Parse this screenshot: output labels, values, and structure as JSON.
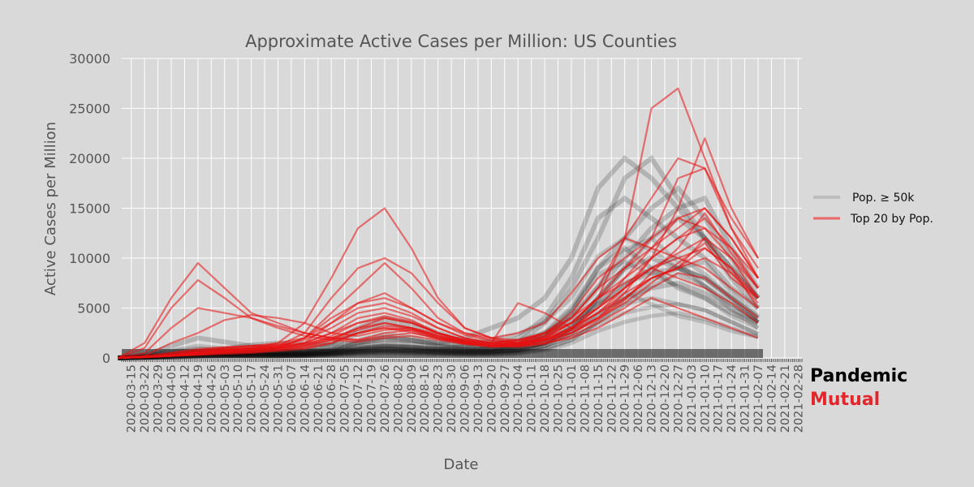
{
  "chart_data": {
    "type": "line",
    "title": "Approximate Active Cases per Million: US Counties",
    "xlabel": "Date",
    "ylabel": "Active Cases per Million",
    "ylim": [
      0,
      30000
    ],
    "yticks": [
      0,
      5000,
      10000,
      15000,
      20000,
      25000,
      30000
    ],
    "xlim": [
      "2020-03-10",
      "2021-03-02"
    ],
    "xtick_labels": [
      "2020-03-15",
      "2020-03-22",
      "2020-03-29",
      "2020-04-05",
      "2020-04-12",
      "2020-04-19",
      "2020-04-26",
      "2020-05-03",
      "2020-05-10",
      "2020-05-17",
      "2020-05-24",
      "2020-05-31",
      "2020-06-07",
      "2020-06-14",
      "2020-06-21",
      "2020-06-28",
      "2020-07-05",
      "2020-07-12",
      "2020-07-19",
      "2020-07-26",
      "2020-08-02",
      "2020-08-09",
      "2020-08-16",
      "2020-08-23",
      "2020-08-30",
      "2020-09-06",
      "2020-09-13",
      "2020-09-20",
      "2020-09-27",
      "2020-10-04",
      "2020-10-11",
      "2020-10-18",
      "2020-10-25",
      "2020-11-01",
      "2020-11-08",
      "2020-11-15",
      "2020-11-22",
      "2020-11-29",
      "2020-12-06",
      "2020-12-13",
      "2020-12-20",
      "2020-12-27",
      "2021-01-03",
      "2021-01-10",
      "2021-01-17",
      "2021-01-24",
      "2021-01-31",
      "2021-02-07",
      "2021-02-14",
      "2021-02-21",
      "2021-02-28"
    ],
    "grid": true,
    "legend": {
      "placement": "right",
      "entries": [
        {
          "label": "Pop.  ≥  50k",
          "color": "#bdbdbd"
        },
        {
          "label": "Top 20 by Pop.",
          "color": "#e8686b"
        }
      ]
    },
    "x": [
      "2020-03-08",
      "2020-03-22",
      "2020-04-05",
      "2020-04-19",
      "2020-05-03",
      "2020-05-17",
      "2020-05-31",
      "2020-06-14",
      "2020-06-28",
      "2020-07-12",
      "2020-07-26",
      "2020-08-09",
      "2020-08-23",
      "2020-09-06",
      "2020-09-20",
      "2020-10-04",
      "2020-10-18",
      "2020-11-01",
      "2020-11-15",
      "2020-11-29",
      "2020-12-13",
      "2020-12-27",
      "2021-01-10",
      "2021-01-24",
      "2021-02-07"
    ],
    "series_top20": [
      [
        0,
        1500,
        6000,
        9500,
        7000,
        4500,
        3500,
        2500,
        2000,
        1800,
        2200,
        2500,
        2000,
        1500,
        1200,
        1300,
        1800,
        3000,
        5000,
        7000,
        9000,
        10000,
        11000,
        9000,
        6000
      ],
      [
        0,
        1000,
        5000,
        7800,
        6000,
        4000,
        3000,
        2200,
        1800,
        1600,
        2000,
        2200,
        1800,
        1400,
        1200,
        1300,
        2000,
        3500,
        6000,
        8000,
        10000,
        12000,
        14000,
        11000,
        7000
      ],
      [
        0,
        500,
        3000,
        5000,
        4500,
        4000,
        3200,
        2500,
        2000,
        1800,
        2500,
        2800,
        2200,
        1600,
        1300,
        1500,
        2200,
        4000,
        7000,
        9000,
        11000,
        13000,
        15000,
        12000,
        8000
      ],
      [
        0,
        200,
        1500,
        2500,
        3800,
        4300,
        4000,
        3500,
        2500,
        2200,
        2800,
        3000,
        2400,
        1700,
        1400,
        1600,
        2500,
        4500,
        8000,
        10000,
        12000,
        14000,
        13000,
        10000,
        6000
      ],
      [
        0,
        100,
        500,
        800,
        1000,
        1200,
        1500,
        2000,
        3500,
        5000,
        5500,
        4500,
        3000,
        2000,
        1500,
        1800,
        2200,
        3500,
        6000,
        12000,
        25000,
        27000,
        20000,
        13000,
        8000
      ],
      [
        0,
        100,
        300,
        500,
        700,
        900,
        1500,
        3500,
        8000,
        13000,
        15000,
        11000,
        6000,
        3000,
        2000,
        1800,
        2500,
        4000,
        7000,
        12000,
        16000,
        20000,
        19000,
        14000,
        10000
      ],
      [
        0,
        100,
        300,
        600,
        800,
        1000,
        1200,
        2500,
        6000,
        9000,
        10000,
        8500,
        5500,
        3000,
        2000,
        1500,
        2000,
        3500,
        6000,
        9000,
        12000,
        18000,
        19000,
        13000,
        9000
      ],
      [
        0,
        100,
        200,
        400,
        600,
        800,
        1000,
        2000,
        4500,
        7000,
        9500,
        7000,
        4000,
        2500,
        1800,
        1500,
        1800,
        3000,
        5000,
        8000,
        11000,
        14000,
        15000,
        12000,
        8000
      ],
      [
        0,
        100,
        200,
        400,
        600,
        700,
        900,
        1500,
        3500,
        5500,
        6500,
        5000,
        3500,
        2500,
        2000,
        2500,
        3500,
        6500,
        10000,
        12000,
        11000,
        10000,
        9000,
        7000,
        5000
      ],
      [
        0,
        200,
        500,
        900,
        1100,
        1200,
        1300,
        1800,
        3000,
        4500,
        5000,
        4200,
        3000,
        2000,
        1500,
        1200,
        1500,
        2500,
        4000,
        6000,
        8000,
        9000,
        10000,
        8500,
        6000
      ],
      [
        0,
        100,
        300,
        500,
        700,
        800,
        1000,
        1500,
        2500,
        4000,
        4500,
        3800,
        2500,
        1800,
        1500,
        5500,
        4500,
        3000,
        4500,
        6000,
        8000,
        9000,
        12000,
        10000,
        7000
      ],
      [
        0,
        100,
        200,
        400,
        500,
        600,
        800,
        1200,
        2000,
        3000,
        3500,
        3000,
        2000,
        1500,
        1200,
        1500,
        2500,
        4000,
        6000,
        7500,
        9000,
        8000,
        7000,
        5500,
        3500
      ],
      [
        0,
        100,
        300,
        600,
        900,
        1000,
        1100,
        1300,
        2200,
        3500,
        4200,
        3600,
        2500,
        1800,
        1500,
        1800,
        2500,
        3500,
        5000,
        7000,
        9000,
        10500,
        12000,
        8500,
        5500
      ],
      [
        0,
        100,
        200,
        500,
        700,
        900,
        1000,
        1100,
        1800,
        3000,
        4000,
        3500,
        2500,
        1600,
        1200,
        1300,
        1800,
        2500,
        4000,
        6500,
        10000,
        15000,
        22000,
        15000,
        10000
      ],
      [
        0,
        100,
        200,
        300,
        400,
        500,
        700,
        900,
        1500,
        2500,
        3000,
        2800,
        2000,
        1500,
        1200,
        1200,
        1500,
        2000,
        3000,
        4500,
        6000,
        5000,
        4000,
        3000,
        2000
      ],
      [
        0,
        100,
        300,
        700,
        1000,
        1200,
        1300,
        1500,
        2500,
        3500,
        4000,
        3500,
        2500,
        1800,
        1400,
        1500,
        2000,
        3000,
        4500,
        6500,
        8000,
        9000,
        11000,
        9000,
        5000
      ],
      [
        0,
        100,
        200,
        400,
        600,
        800,
        1100,
        2000,
        4000,
        5500,
        6000,
        5000,
        3500,
        2300,
        1700,
        1500,
        1800,
        2800,
        4500,
        7000,
        10000,
        12000,
        13000,
        11000,
        8000
      ],
      [
        0,
        50,
        200,
        500,
        800,
        1000,
        1200,
        1400,
        2000,
        2800,
        3500,
        3000,
        2200,
        1600,
        1200,
        1100,
        1400,
        2200,
        3500,
        5000,
        7000,
        8500,
        8000,
        6000,
        4000
      ],
      [
        0,
        100,
        300,
        600,
        800,
        900,
        1000,
        1200,
        1800,
        2500,
        3200,
        3000,
        2200,
        1500,
        1200,
        1300,
        1800,
        2800,
        4000,
        5500,
        7500,
        9500,
        11500,
        8000,
        6000
      ],
      [
        0,
        100,
        200,
        300,
        500,
        600,
        800,
        1000,
        1500,
        2500,
        3000,
        2600,
        1900,
        1400,
        1100,
        1200,
        1700,
        2500,
        3800,
        5800,
        8500,
        11000,
        14500,
        10500,
        7000
      ]
    ],
    "series_pop50k_sample": [
      [
        0,
        200,
        600,
        900,
        800,
        700,
        600,
        500,
        600,
        800,
        900,
        800,
        700,
        600,
        600,
        800,
        1500,
        3000,
        6000,
        9000,
        10000,
        9000,
        8000,
        6000,
        4000
      ],
      [
        0,
        100,
        300,
        500,
        500,
        500,
        500,
        500,
        800,
        1500,
        2000,
        1800,
        1400,
        1200,
        1200,
        2000,
        4000,
        8000,
        14000,
        16000,
        14000,
        12000,
        10000,
        7000,
        5000
      ],
      [
        0,
        50,
        200,
        400,
        400,
        400,
        400,
        400,
        600,
        1000,
        1200,
        1100,
        900,
        800,
        900,
        1500,
        3500,
        7000,
        12000,
        18000,
        20000,
        16000,
        12000,
        9000,
        6000
      ],
      [
        0,
        100,
        400,
        700,
        600,
        500,
        500,
        600,
        1200,
        2500,
        3500,
        3000,
        2000,
        1500,
        1200,
        1200,
        2000,
        4500,
        9000,
        12000,
        15000,
        17000,
        14000,
        10000,
        6000
      ],
      [
        0,
        50,
        100,
        200,
        300,
        300,
        300,
        400,
        700,
        1200,
        1500,
        1400,
        1200,
        1000,
        1000,
        1300,
        2500,
        5000,
        9000,
        11000,
        9000,
        7000,
        6000,
        4500,
        3500
      ],
      [
        0,
        100,
        200,
        300,
        400,
        500,
        600,
        800,
        1500,
        3000,
        4000,
        3500,
        2500,
        1800,
        1500,
        1700,
        2500,
        4000,
        7000,
        10000,
        13000,
        15000,
        16000,
        11000,
        7000
      ],
      [
        0,
        300,
        1200,
        2000,
        1600,
        1200,
        900,
        700,
        800,
        1000,
        1200,
        1100,
        900,
        800,
        900,
        1200,
        2000,
        3500,
        5500,
        7500,
        8500,
        9000,
        8000,
        6000,
        4000
      ],
      [
        0,
        50,
        150,
        250,
        300,
        300,
        300,
        300,
        400,
        600,
        800,
        700,
        600,
        500,
        500,
        700,
        1200,
        2500,
        4500,
        6000,
        7000,
        7500,
        6500,
        5000,
        3500
      ],
      [
        0,
        100,
        300,
        600,
        900,
        1300,
        1500,
        1400,
        1300,
        1500,
        1800,
        1700,
        1500,
        2000,
        3000,
        4000,
        6000,
        10000,
        17000,
        20000,
        18000,
        15000,
        12000,
        9000,
        6000
      ],
      [
        0,
        50,
        100,
        200,
        200,
        200,
        200,
        300,
        500,
        800,
        1000,
        900,
        800,
        700,
        700,
        900,
        1500,
        3000,
        6000,
        9000,
        12000,
        14000,
        12000,
        8000,
        5000
      ]
    ]
  },
  "branding": {
    "line1": "Pandemic",
    "line2": "Mutual",
    "line1_color": "#000000",
    "line2_color": "#e3262b"
  },
  "colors": {
    "background": "#d9d9d9",
    "grid": "#ffffff",
    "top20": "#e8686b",
    "pop50k": "#000000"
  }
}
